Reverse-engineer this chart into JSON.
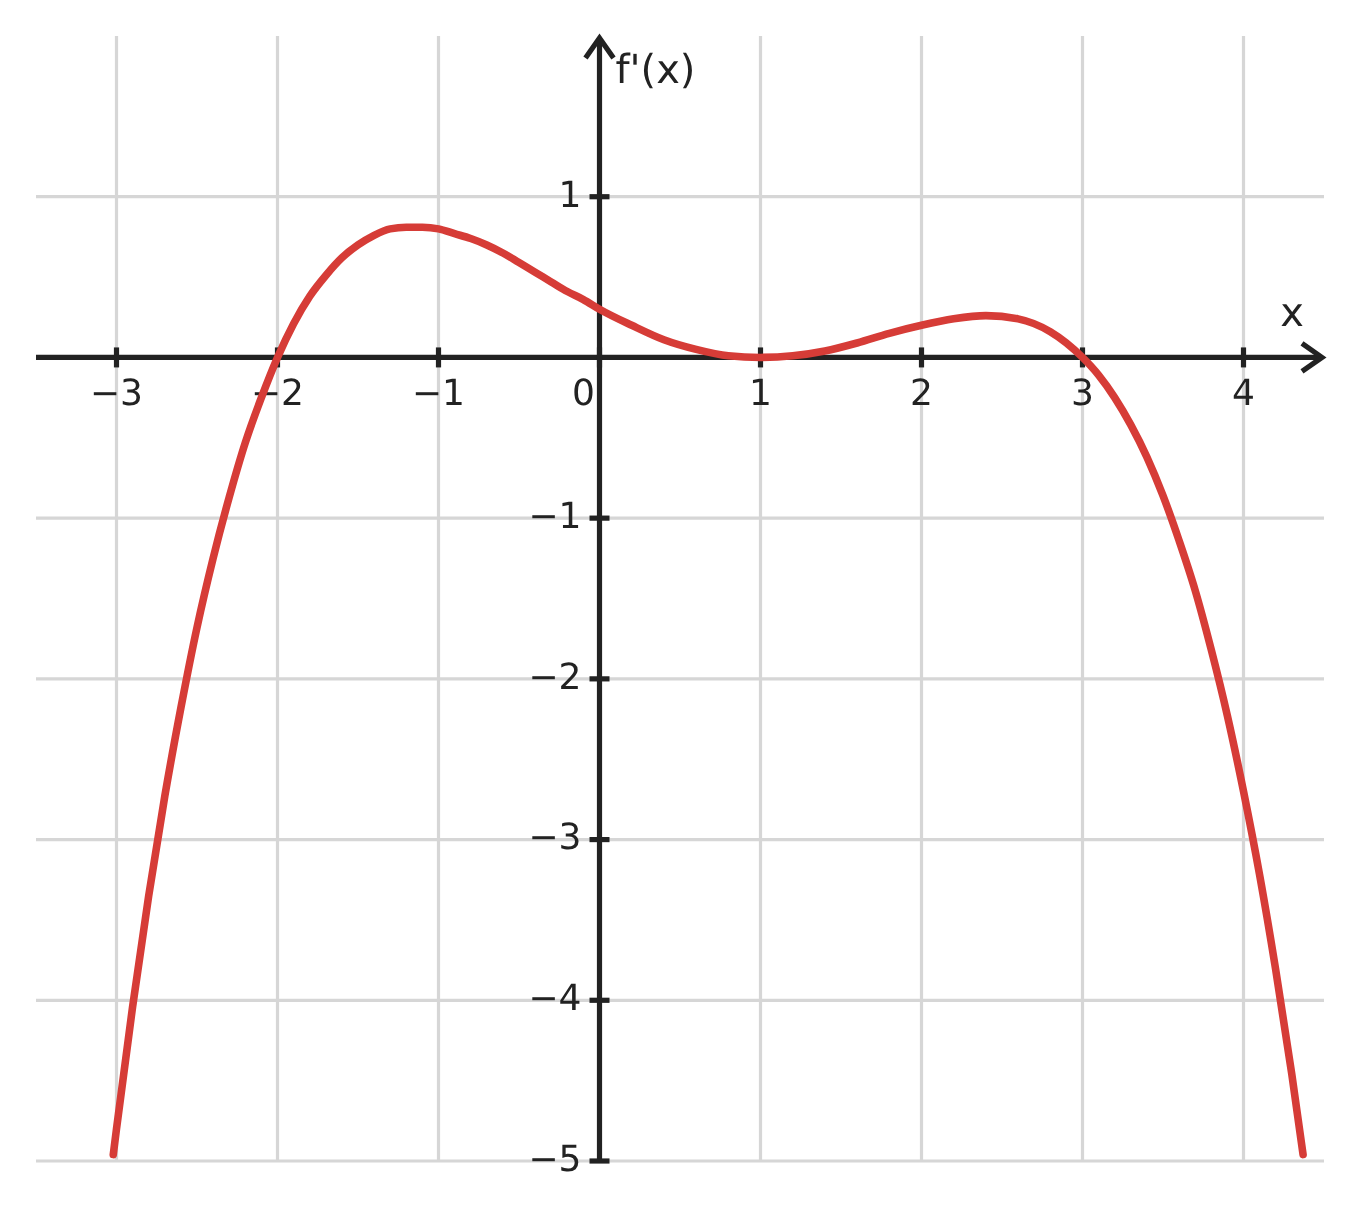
{
  "chart_data": {
    "type": "line",
    "xlabel": "x",
    "ylabel": "f'(x)",
    "color": "#d63c37",
    "x": [
      -3.02,
      -3.0,
      -2.9,
      -2.8,
      -2.7,
      -2.6,
      -2.5,
      -2.4,
      -2.3,
      -2.2,
      -2.1,
      -2.0,
      -1.9,
      -1.8,
      -1.7,
      -1.6,
      -1.5,
      -1.4,
      -1.3,
      -1.2,
      -1.1,
      -1.0,
      -0.9,
      -0.8,
      -0.7,
      -0.6,
      -0.5,
      -0.4,
      -0.3,
      -0.2,
      -0.1,
      0.0,
      0.2,
      0.4,
      0.6,
      0.8,
      1.0,
      1.2,
      1.4,
      1.6,
      1.8,
      2.0,
      2.2,
      2.4,
      2.6,
      2.8,
      3.0,
      3.1,
      3.2,
      3.3,
      3.4,
      3.5,
      3.6,
      3.7,
      3.8,
      3.9,
      4.0,
      4.1,
      4.2,
      4.3,
      4.37
    ],
    "values": [
      -4.96,
      -4.8,
      -4.04,
      -3.35,
      -2.73,
      -2.18,
      -1.68,
      -1.25,
      -0.87,
      -0.53,
      -0.25,
      0.0,
      0.21,
      0.38,
      0.51,
      0.62,
      0.7,
      0.76,
      0.8,
      0.81,
      0.81,
      0.8,
      0.77,
      0.74,
      0.7,
      0.65,
      0.59,
      0.53,
      0.47,
      0.41,
      0.36,
      0.3,
      0.2,
      0.11,
      0.05,
      0.01,
      0.0,
      0.01,
      0.04,
      0.09,
      0.15,
      0.2,
      0.24,
      0.26,
      0.24,
      0.16,
      0.0,
      -0.11,
      -0.25,
      -0.42,
      -0.62,
      -0.86,
      -1.14,
      -1.45,
      -1.82,
      -2.23,
      -2.7,
      -3.22,
      -3.81,
      -4.46,
      -4.96
    ],
    "xlim": [
      -3.5,
      4.5
    ],
    "ylim": [
      -5,
      2
    ],
    "xticks": [
      {
        "value": -3,
        "label": "−3"
      },
      {
        "value": -2,
        "label": "−2"
      },
      {
        "value": -1,
        "label": "−1"
      },
      0,
      1,
      2,
      3,
      4
    ],
    "yticks": [
      {
        "value": -5,
        "label": "−5"
      },
      {
        "value": -4,
        "label": "−4"
      },
      {
        "value": -3,
        "label": "−3"
      },
      {
        "value": -2,
        "label": "−2"
      },
      {
        "value": -1,
        "label": "−1"
      },
      1
    ],
    "grid": true,
    "line_style": "solid"
  }
}
